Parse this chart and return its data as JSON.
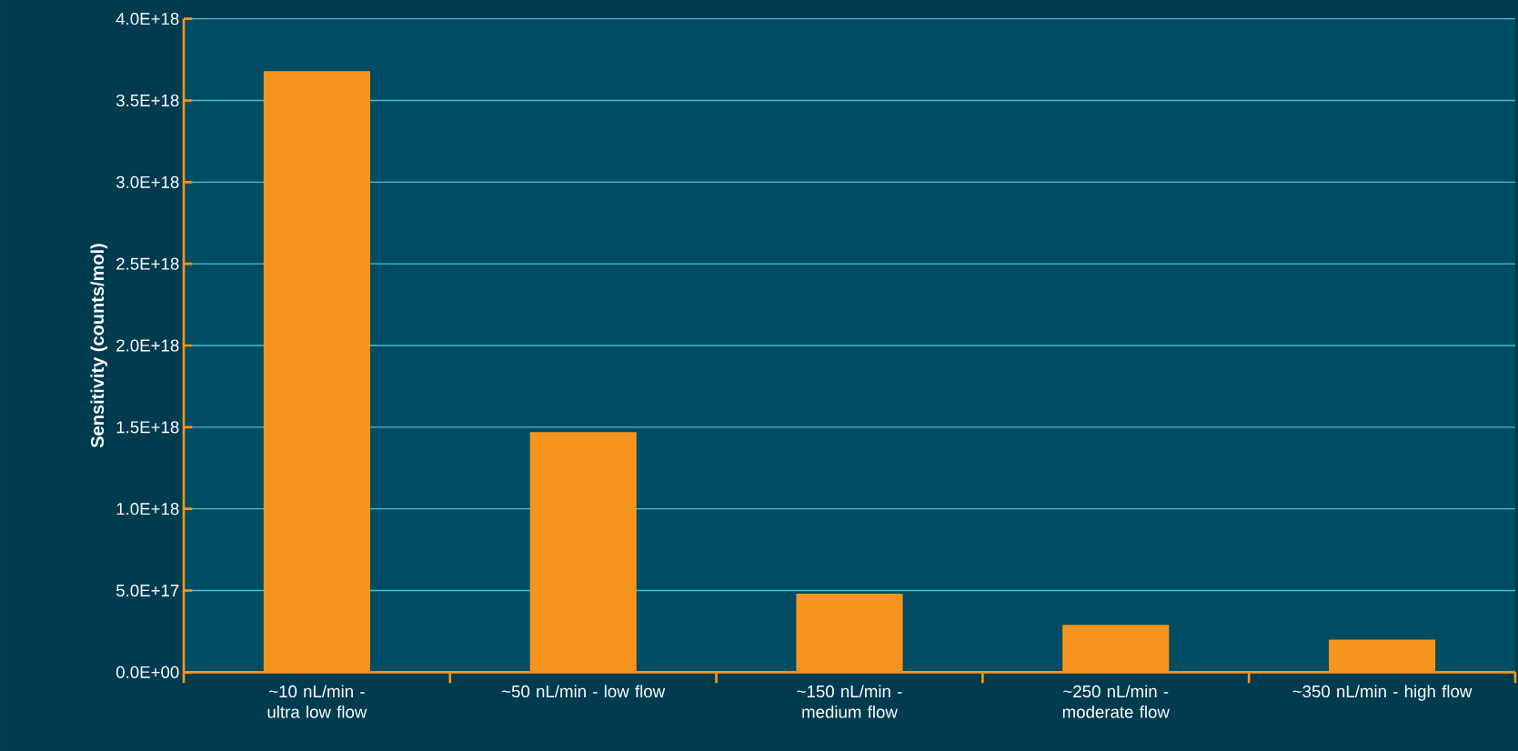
{
  "chart_data": {
    "type": "bar",
    "ylabel": "**Sensitivity (counts/mol)**",
    "categories": [
      "~10 nL/min - ultra low flow",
      "~50 nL/min - low flow",
      "~150 nL/min - medium flow",
      "~250 nL/min - moderate flow",
      "~350 nL/min - high flow"
    ],
    "values": [
      3.68e+18,
      1.47e+18,
      4.8e+17,
      2.9e+17,
      2e+17
    ],
    "color": "#f7941d",
    "ylim": [
      0,
      4e+18
    ],
    "yticks": [
      {
        "value": 0,
        "label": "0.0E+00"
      },
      {
        "value": 5e+17,
        "label": "5.0E+17"
      },
      {
        "value": 1e+18,
        "label": "1.0E+18"
      },
      {
        "value": 1.5e+18,
        "label": "1.5E+18"
      },
      {
        "value": 2e+18,
        "label": "2.0E+18"
      },
      {
        "value": 2.5e+18,
        "label": "2.5E+18"
      },
      {
        "value": 3e+18,
        "label": "3.0E+18"
      },
      {
        "value": 3.5e+18,
        "label": "3.5E+18"
      },
      {
        "value": 4e+18,
        "label": "4.0E+18"
      }
    ],
    "grid": "y"
  }
}
